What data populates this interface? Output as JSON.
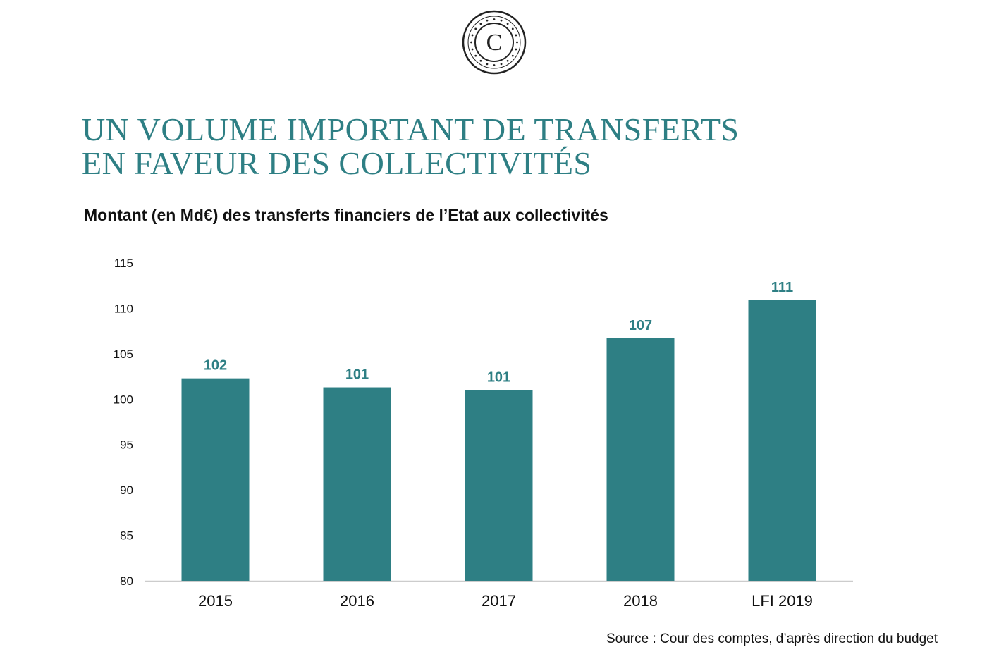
{
  "slide": {
    "title_line1": "UN VOLUME IMPORTANT DE TRANSFERTS",
    "title_line2": "EN FAVEUR DES COLLECTIVITÉS",
    "logo_letter": "C",
    "source": "Source : Cour des comptes, d’après direction du budget"
  },
  "colors": {
    "accent": "#2e7f84",
    "bar": "#2e7f84",
    "text": "#111111"
  },
  "chart_data": {
    "type": "bar",
    "title": "Montant (en Md€) des transferts financiers de l’Etat aux collectivités",
    "xlabel": "",
    "ylabel": "",
    "categories": [
      "2015",
      "2016",
      "2017",
      "2018",
      "LFI 2019"
    ],
    "values": [
      102.3,
      101.3,
      101.0,
      106.7,
      110.9
    ],
    "data_labels": [
      "102",
      "101",
      "101",
      "107",
      "111"
    ],
    "ylim": [
      80,
      115
    ],
    "yticks": [
      80,
      85,
      90,
      95,
      100,
      105,
      110,
      115
    ],
    "grid": false,
    "legend": "none"
  }
}
